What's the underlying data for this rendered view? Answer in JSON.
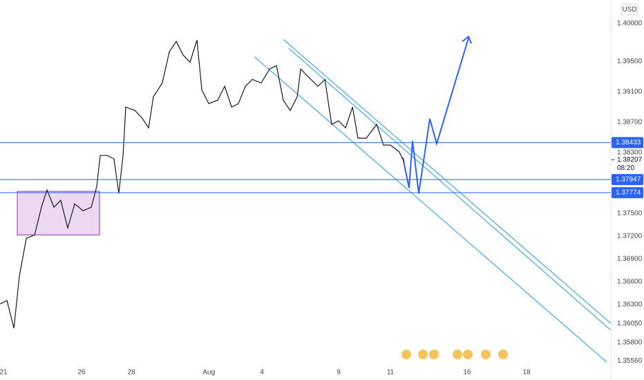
{
  "chart_data": {
    "type": "line",
    "currency": "USD",
    "x": [
      -0.18,
      0.18,
      0.54,
      0.82,
      1.18,
      1.61,
      1.96,
      2.25,
      2.61,
      2.96,
      3.32,
      3.68,
      4.11,
      4.54,
      4.82,
      5,
      5.36,
      5.71,
      5.96,
      6.18,
      6.32,
      6.79,
      7.14,
      7.5,
      7.75,
      8.21,
      8.57,
      8.93,
      9.29,
      9.64,
      10,
      10.25,
      10.61,
      11.07,
      11.43,
      11.79,
      12.14,
      12.5,
      12.86,
      13.32,
      13.75,
      14.11,
      14.46,
      14.82,
      15.18,
      15.36,
      15.71,
      16.25,
      16.61,
      16.96,
      17.32,
      17.68,
      18.04,
      18.32,
      18.75,
      19.29,
      19.64,
      20,
      20.46,
      20.71
    ],
    "series": [
      {
        "color": "#131722",
        "values": [
          1.36309,
          1.36355,
          1.35991,
          1.36673,
          1.37173,
          1.37218,
          1.37582,
          1.37809,
          1.37582,
          1.37673,
          1.37309,
          1.37627,
          1.37536,
          1.37582,
          1.37855,
          1.38264,
          1.38264,
          1.38218,
          1.37764,
          1.38264,
          1.389,
          1.38855,
          1.38764,
          1.38627,
          1.39036,
          1.39218,
          1.39627,
          1.39764,
          1.39582,
          1.39491,
          1.39782,
          1.39127,
          1.38945,
          1.38991,
          1.39173,
          1.389,
          1.38945,
          1.39173,
          1.39264,
          1.39218,
          1.394,
          1.39445,
          1.38991,
          1.38855,
          1.39036,
          1.394,
          1.39309,
          1.39173,
          1.39264,
          1.38673,
          1.38718,
          1.38627,
          1.389,
          1.38491,
          1.38491,
          1.38673,
          1.384,
          1.384,
          1.38309,
          1.38173
        ]
      }
    ],
    "xlim": [
      -0.18,
      31.39
    ],
    "xticks": [
      {
        "value": 0,
        "label": "21"
      },
      {
        "value": 4.04,
        "label": "26"
      },
      {
        "value": 6.61,
        "label": "28"
      },
      {
        "value": 10.61,
        "label": "Aug"
      },
      {
        "value": 13.36,
        "label": "4"
      },
      {
        "value": 17.32,
        "label": "9"
      },
      {
        "value": 20,
        "label": "11"
      },
      {
        "value": 23.96,
        "label": "16"
      },
      {
        "value": 27.04,
        "label": "18"
      }
    ],
    "ylim": [
      1.35309,
      1.40309
    ],
    "yticks": [
      {
        "value": 1.4,
        "label": "1.40000"
      },
      {
        "value": 1.395,
        "label": "1.39500"
      },
      {
        "value": 1.391,
        "label": "1.39100"
      },
      {
        "value": 1.387,
        "label": "1.38700"
      },
      {
        "value": 1.383,
        "label": "1.38300"
      },
      {
        "value": 1.375,
        "label": "1.37500"
      },
      {
        "value": 1.372,
        "label": "1.37200"
      },
      {
        "value": 1.369,
        "label": "1.36900"
      },
      {
        "value": 1.366,
        "label": "1.36600"
      },
      {
        "value": 1.363,
        "label": "1.36300"
      },
      {
        "value": 1.3605,
        "label": "1.36050"
      },
      {
        "value": 1.358,
        "label": "1.35800"
      },
      {
        "value": 1.3556,
        "label": "1.35560"
      }
    ],
    "grid": false,
    "levels": [
      1.38433,
      1.37947,
      1.37774
    ],
    "level_color": "#2962ff",
    "last_price": 1.38207,
    "countdown": "08:20"
  }
}
